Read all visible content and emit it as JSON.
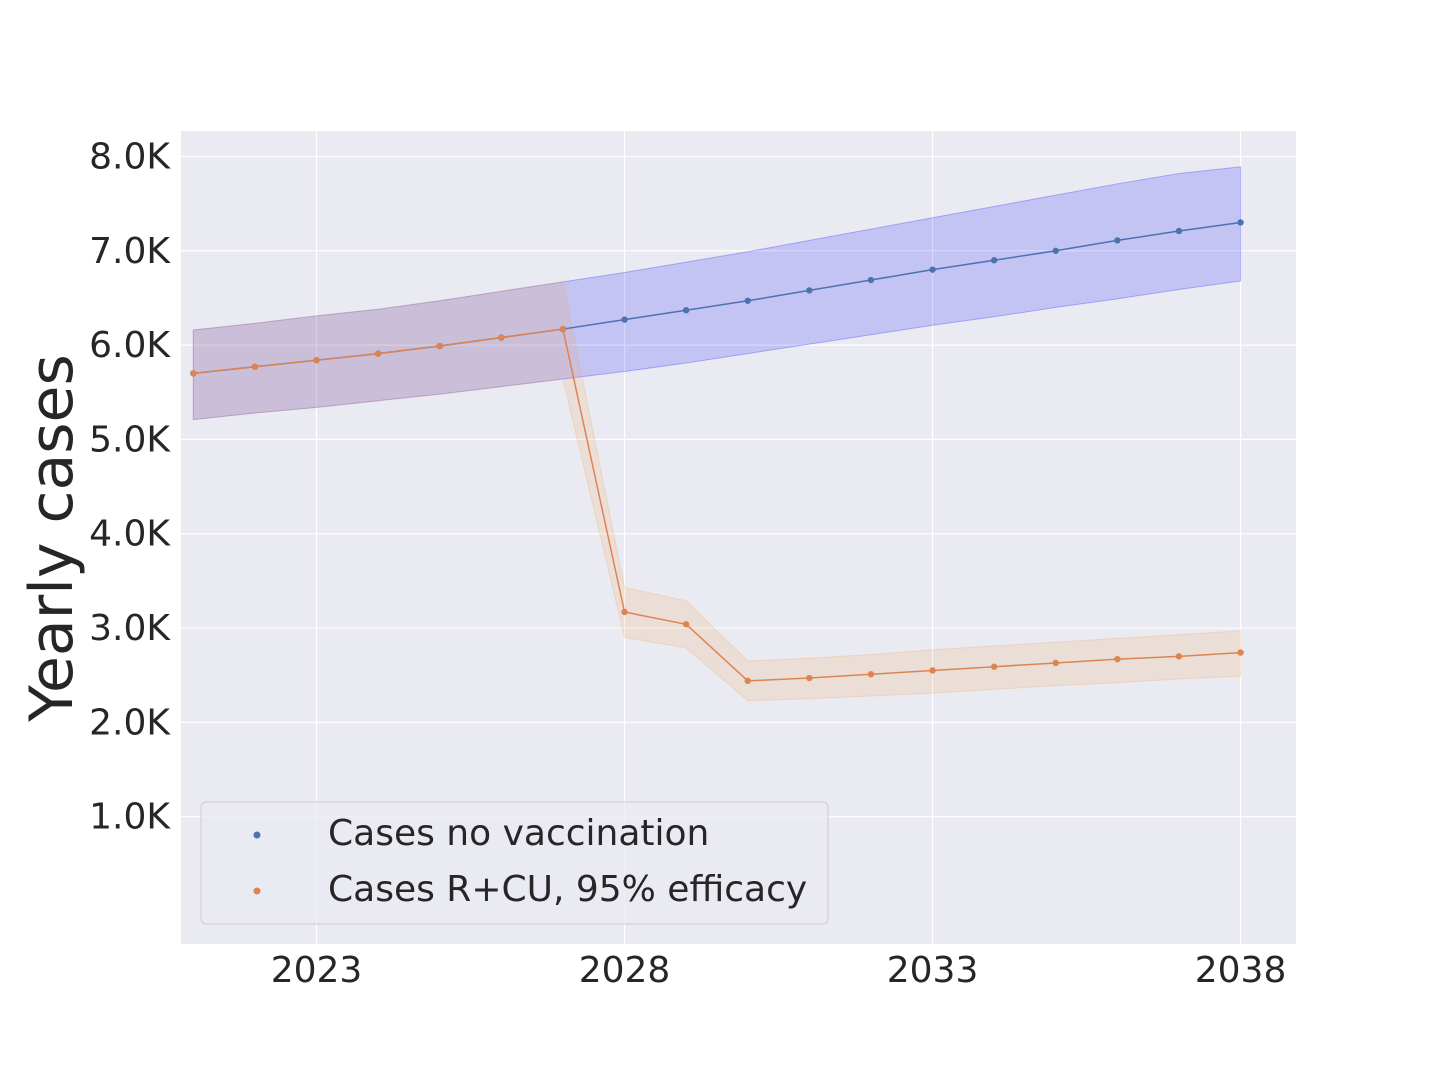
{
  "chart_data": {
    "type": "line",
    "title": "",
    "xlabel": "",
    "ylabel": "Yearly cases",
    "xlim": [
      2020.8,
      2038.9
    ],
    "ylim": [
      -350,
      8270
    ],
    "x_ticks": [
      2023,
      2028,
      2033,
      2038
    ],
    "x_tick_labels": [
      "2023",
      "2028",
      "2033",
      "2038"
    ],
    "y_ticks": [
      1000,
      2000,
      3000,
      4000,
      5000,
      6000,
      7000,
      8000
    ],
    "y_tick_labels": [
      "1.0K",
      "2.0K",
      "3.0K",
      "4.0K",
      "5.0K",
      "6.0K",
      "7.0K",
      "8.0K"
    ],
    "grid": true,
    "legend_position": "lower-left",
    "background_color": "#eaeaf2",
    "x": [
      2021,
      2022,
      2023,
      2024,
      2025,
      2026,
      2027,
      2028,
      2029,
      2030,
      2031,
      2032,
      2033,
      2034,
      2035,
      2036,
      2037,
      2038
    ],
    "series": [
      {
        "name": "Cases no vaccination",
        "color": "#4c72b0",
        "band_color": "#0000ff",
        "values": [
          5700,
          5770,
          5840,
          5910,
          5990,
          6080,
          6170,
          6270,
          6370,
          6470,
          6580,
          6690,
          6800,
          6900,
          7000,
          7110,
          7210,
          7300
        ],
        "lower": [
          5210,
          5280,
          5340,
          5410,
          5480,
          5560,
          5640,
          5720,
          5810,
          5910,
          6010,
          6110,
          6210,
          6300,
          6400,
          6490,
          6590,
          6680
        ],
        "upper": [
          6160,
          6230,
          6310,
          6380,
          6470,
          6570,
          6670,
          6770,
          6880,
          6990,
          7110,
          7230,
          7350,
          7470,
          7590,
          7710,
          7820,
          7890
        ]
      },
      {
        "name": "Cases R+CU, 95% efficacy",
        "color": "#dd8452",
        "band_color": "#f5a34d",
        "values": [
          5700,
          5770,
          5840,
          5910,
          5990,
          6080,
          6170,
          3170,
          3040,
          2440,
          2470,
          2510,
          2550,
          2590,
          2630,
          2670,
          2700,
          2740
        ],
        "lower": [
          5210,
          5280,
          5340,
          5410,
          5480,
          5560,
          5640,
          2900,
          2790,
          2230,
          2250,
          2280,
          2310,
          2350,
          2390,
          2420,
          2460,
          2490
        ],
        "upper": [
          6160,
          6230,
          6310,
          6380,
          6470,
          6570,
          6670,
          3430,
          3290,
          2650,
          2680,
          2720,
          2770,
          2810,
          2850,
          2890,
          2930,
          2970
        ]
      }
    ]
  }
}
